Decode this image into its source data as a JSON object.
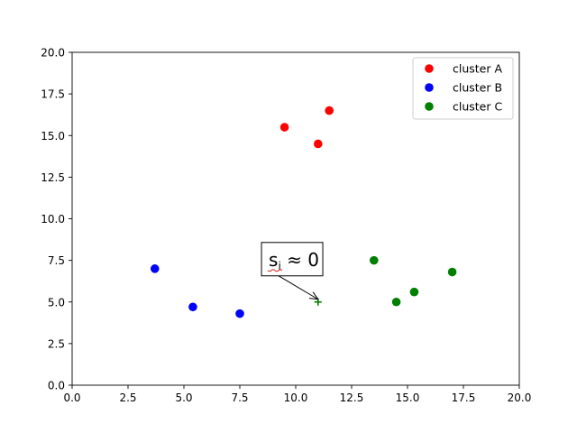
{
  "chart_data": {
    "type": "scatter",
    "xlim": [
      0,
      20
    ],
    "ylim": [
      0,
      20
    ],
    "x_ticks": [
      "0.0",
      "2.5",
      "5.0",
      "7.5",
      "10.0",
      "12.5",
      "15.0",
      "17.5",
      "20.0"
    ],
    "y_ticks": [
      "0.0",
      "2.5",
      "5.0",
      "7.5",
      "10.0",
      "12.5",
      "15.0",
      "17.5",
      "20.0"
    ],
    "grid": false,
    "legend_position": "top-right",
    "series": [
      {
        "name": "cluster A",
        "color": "#ff0000",
        "points": [
          [
            9.5,
            15.5
          ],
          [
            11.0,
            14.5
          ],
          [
            11.5,
            16.5
          ]
        ]
      },
      {
        "name": "cluster B",
        "color": "#0000ff",
        "points": [
          [
            3.7,
            7.0
          ],
          [
            5.4,
            4.7
          ],
          [
            7.5,
            4.3
          ]
        ]
      },
      {
        "name": "cluster C",
        "color": "#008000",
        "points": [
          [
            13.5,
            7.5
          ],
          [
            14.5,
            5.0
          ],
          [
            15.3,
            5.6
          ],
          [
            17.0,
            6.8
          ]
        ]
      }
    ],
    "highlight_point": {
      "marker": "plus",
      "color": "#008000",
      "x": 11.0,
      "y": 5.0
    },
    "annotation": {
      "text_main": "s",
      "text_sub": "i",
      "text_rest": " ≈ 0",
      "text_x": 9.8,
      "text_y": 7.6,
      "arrow_target": [
        11.0,
        5.0
      ]
    }
  }
}
